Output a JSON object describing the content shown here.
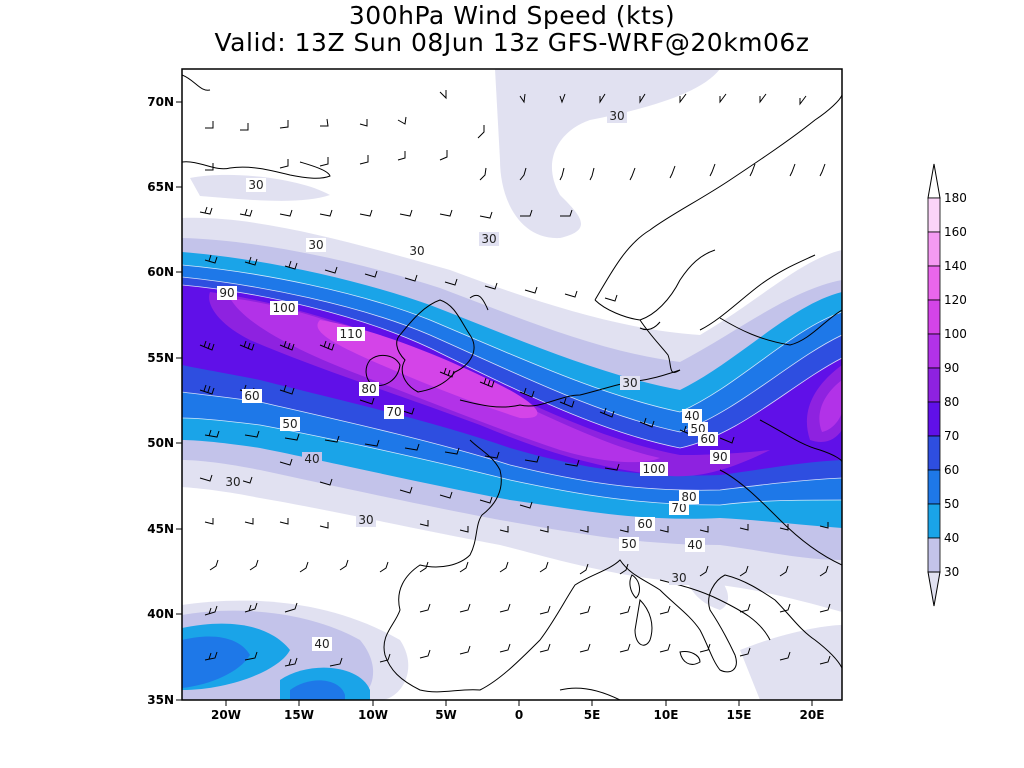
{
  "title": {
    "line1": "300hPa Wind Speed (kts)",
    "line2": "Valid: 13Z Sun 08Jun 13z GFS-WRF@20km06z"
  },
  "axes": {
    "lat_labels": [
      "70N",
      "65N",
      "60N",
      "55N",
      "50N",
      "45N",
      "40N",
      "35N"
    ],
    "lon_labels": [
      "20W",
      "15W",
      "10W",
      "5W",
      "0",
      "5E",
      "10E",
      "15E",
      "20E"
    ]
  },
  "contour_labels": [
    "30",
    "30",
    "30",
    "30",
    "30",
    "30",
    "30",
    "30",
    "30",
    "40",
    "40",
    "40",
    "40",
    "50",
    "50",
    "50",
    "60",
    "60",
    "60",
    "70",
    "70",
    "80",
    "80",
    "90",
    "90",
    "100",
    "100",
    "110"
  ],
  "legend": {
    "levels": [
      "30",
      "40",
      "50",
      "60",
      "70",
      "80",
      "90",
      "100",
      "120",
      "140",
      "160",
      "180"
    ],
    "colors": [
      "#e1e1f1",
      "#c3c3ea",
      "#1aa4e8",
      "#1e78e8",
      "#2e4ee0",
      "#6010e8",
      "#8e22e0",
      "#b232e8",
      "#d444e8",
      "#ea66ec",
      "#f59af2",
      "#fbd4f8"
    ]
  }
}
